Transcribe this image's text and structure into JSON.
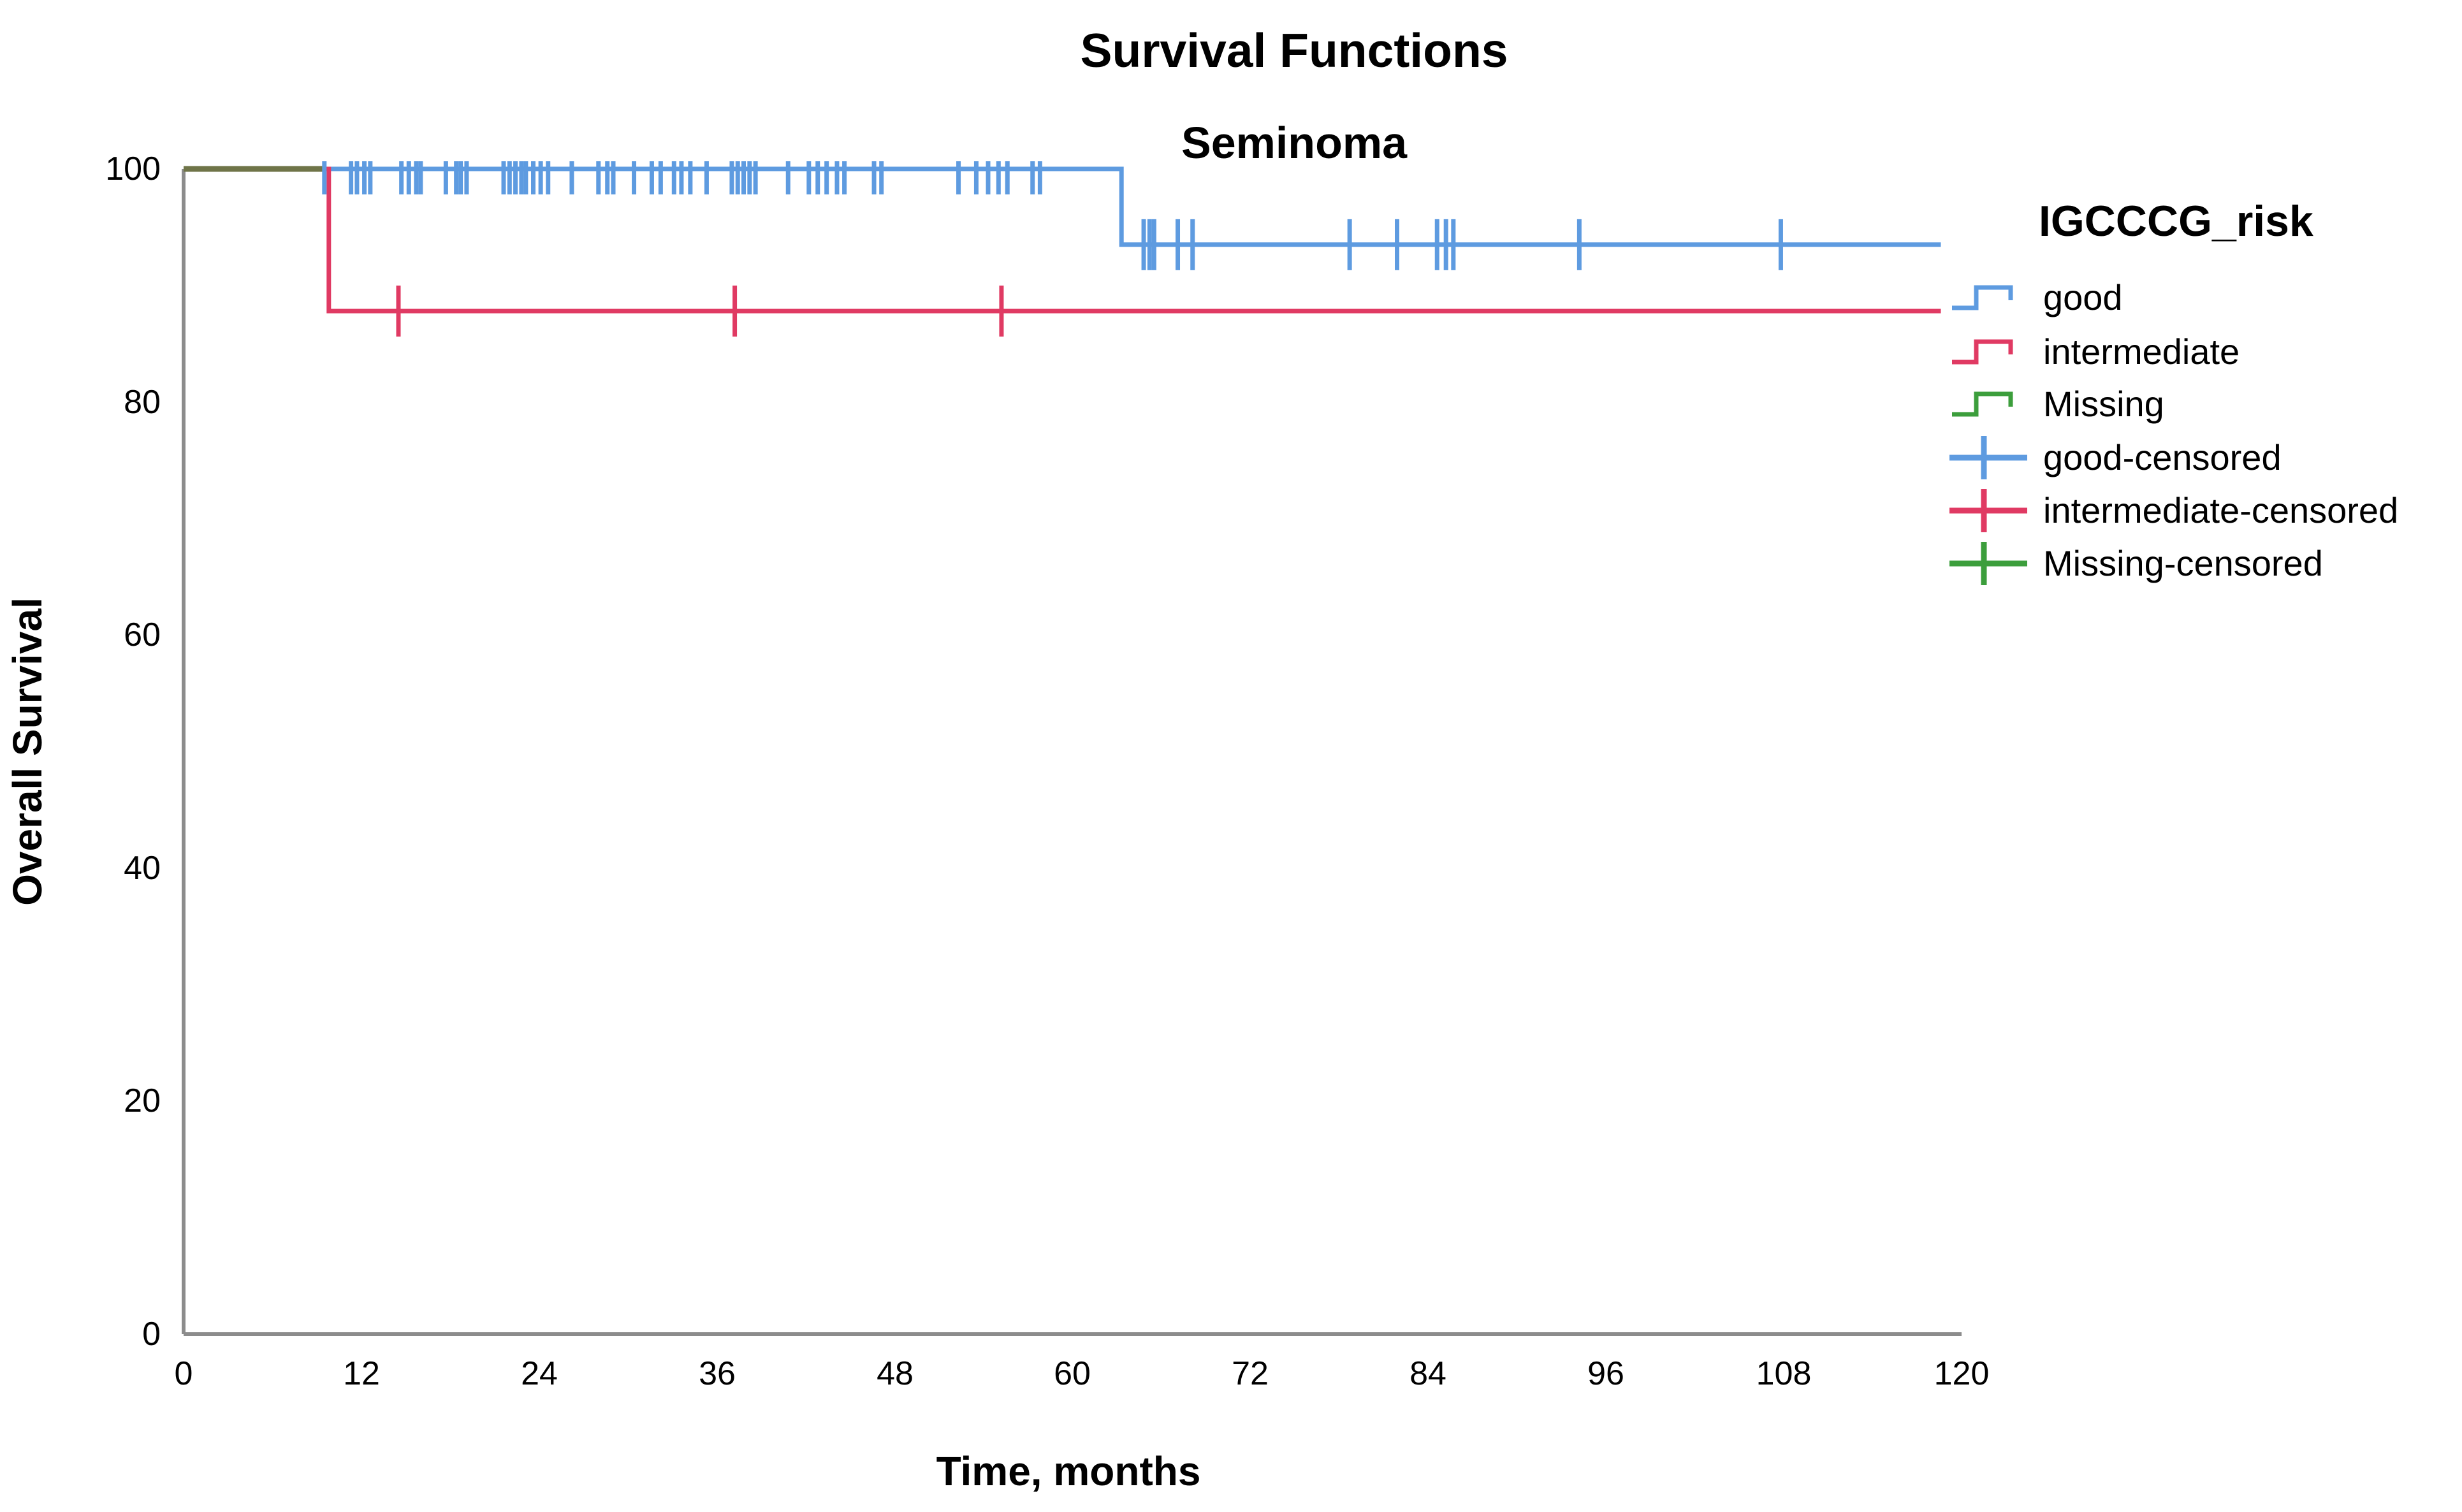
{
  "figure": {
    "title": "Survival Functions",
    "subtitle": "Seminoma"
  },
  "axes": {
    "x": {
      "label": "Time, months",
      "tick_labels": [
        "0",
        "12",
        "24",
        "36",
        "48",
        "60",
        "72",
        "84",
        "96",
        "108",
        "120"
      ]
    },
    "y": {
      "label": "Overall Survival",
      "tick_labels": [
        "0",
        "20",
        "40",
        "60",
        "80",
        "100"
      ]
    }
  },
  "legend": {
    "title": "IGCCCG_risk",
    "entries": [
      {
        "label": "good",
        "type": "step-line",
        "color": "#5E9BE0"
      },
      {
        "label": "intermediate",
        "type": "step-line",
        "color": "#E03A63"
      },
      {
        "label": "Missing",
        "type": "step-line",
        "color": "#3C9E3C"
      },
      {
        "label": "good-censored",
        "type": "censor-plus",
        "color": "#5E9BE0"
      },
      {
        "label": "intermediate-censored",
        "type": "censor-plus",
        "color": "#E03A63"
      },
      {
        "label": "Missing-censored",
        "type": "censor-plus",
        "color": "#3C9E3C"
      }
    ]
  },
  "colors": {
    "good": "#5E9BE0",
    "intermediate": "#E03A63",
    "missing": "#3C9E3C",
    "overlap_segment": "#6F7448",
    "axis": "#8C8C8C",
    "text": "#000000",
    "background": "#FFFFFF"
  },
  "chart_data": {
    "type": "line",
    "subtype": "kaplan-meier-step",
    "title": "Survival Functions",
    "subtitle": "Seminoma",
    "xlabel": "Time, months",
    "ylabel": "Overall Survival",
    "xlim": [
      0,
      120
    ],
    "xticks": [
      0,
      12,
      24,
      36,
      48,
      60,
      72,
      84,
      96,
      108,
      120
    ],
    "ylim": [
      0,
      100
    ],
    "yticks": [
      0,
      20,
      40,
      60,
      80,
      100
    ],
    "grid": false,
    "legend_position": "right",
    "legend_title": "IGCCCG_risk",
    "series": [
      {
        "name": "good",
        "color": "#5E9BE0",
        "step_points": [
          [
            0,
            100
          ],
          [
            63.3,
            100
          ],
          [
            63.3,
            93.5
          ],
          [
            118.6,
            93.5
          ]
        ],
        "censored": [
          [
            9.5,
            100
          ],
          [
            11.3,
            100
          ],
          [
            11.7,
            100
          ],
          [
            12.2,
            100
          ],
          [
            12.6,
            100
          ],
          [
            14.7,
            100
          ],
          [
            15.2,
            100
          ],
          [
            15.7,
            100
          ],
          [
            16.0,
            100
          ],
          [
            17.7,
            100
          ],
          [
            18.4,
            100
          ],
          [
            18.7,
            100
          ],
          [
            19.1,
            100
          ],
          [
            21.6,
            100
          ],
          [
            22.0,
            100
          ],
          [
            22.4,
            100
          ],
          [
            22.8,
            100
          ],
          [
            23.1,
            100
          ],
          [
            23.6,
            100
          ],
          [
            24.1,
            100
          ],
          [
            24.6,
            100
          ],
          [
            26.2,
            100
          ],
          [
            28.0,
            100
          ],
          [
            28.6,
            100
          ],
          [
            29.0,
            100
          ],
          [
            30.4,
            100
          ],
          [
            31.6,
            100
          ],
          [
            32.2,
            100
          ],
          [
            33.1,
            100
          ],
          [
            33.6,
            100
          ],
          [
            34.2,
            100
          ],
          [
            35.3,
            100
          ],
          [
            37.0,
            100
          ],
          [
            37.4,
            100
          ],
          [
            37.8,
            100
          ],
          [
            38.2,
            100
          ],
          [
            38.6,
            100
          ],
          [
            40.8,
            100
          ],
          [
            42.2,
            100
          ],
          [
            42.8,
            100
          ],
          [
            43.4,
            100
          ],
          [
            44.1,
            100
          ],
          [
            44.6,
            100
          ],
          [
            46.6,
            100
          ],
          [
            47.1,
            100
          ],
          [
            52.3,
            100
          ],
          [
            53.5,
            100
          ],
          [
            54.3,
            100
          ],
          [
            55.0,
            100
          ],
          [
            55.6,
            100
          ],
          [
            57.3,
            100
          ],
          [
            57.8,
            100
          ],
          [
            64.8,
            93.5
          ],
          [
            65.2,
            93.5
          ],
          [
            65.5,
            93.5
          ],
          [
            67.1,
            93.5
          ],
          [
            68.1,
            93.5
          ],
          [
            78.7,
            93.5
          ],
          [
            81.9,
            93.5
          ],
          [
            84.6,
            93.5
          ],
          [
            85.2,
            93.5
          ],
          [
            85.7,
            93.5
          ],
          [
            94.2,
            93.5
          ],
          [
            107.8,
            93.5
          ]
        ]
      },
      {
        "name": "intermediate",
        "color": "#E03A63",
        "step_points": [
          [
            0,
            100
          ],
          [
            9.8,
            100
          ],
          [
            9.8,
            87.8
          ],
          [
            118.6,
            87.8
          ]
        ],
        "censored": [
          [
            14.5,
            87.8
          ],
          [
            37.2,
            87.8
          ],
          [
            55.2,
            87.8
          ]
        ]
      },
      {
        "name": "Missing",
        "color": "#3C9E3C",
        "rendered_overlap_color": "#6F7448",
        "step_points": [
          [
            0,
            100
          ],
          [
            9.6,
            100
          ]
        ],
        "censored": []
      }
    ]
  }
}
